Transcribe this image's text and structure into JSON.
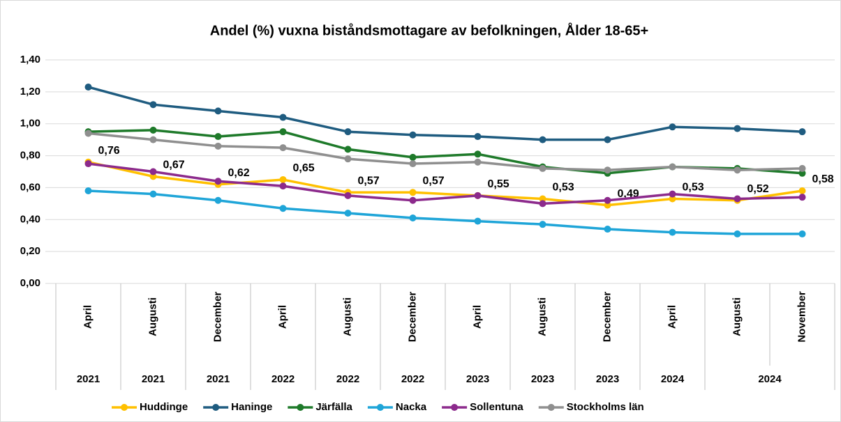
{
  "chart_data": {
    "type": "line",
    "title": "Andel (%) vuxna biståndsmottagare  av befolkningen, Ålder 18-65+",
    "categories": [
      "April",
      "Augusti",
      "December",
      "April",
      "Augusti",
      "December",
      "April",
      "Augusti",
      "December",
      "April",
      "Augusti",
      "November"
    ],
    "years": [
      "2021",
      "2021",
      "2021",
      "2022",
      "2022",
      "2022",
      "2023",
      "2023",
      "2023",
      "2024",
      "2024",
      null
    ],
    "ylim": [
      0,
      1.4
    ],
    "yticks": [
      {
        "value": 0,
        "label": "0,00"
      },
      {
        "value": 0.2,
        "label": "0,20"
      },
      {
        "value": 0.4,
        "label": "0,40"
      },
      {
        "value": 0.6,
        "label": "0,60"
      },
      {
        "value": 0.8,
        "label": "0,80"
      },
      {
        "value": 1.0,
        "label": "1,00"
      },
      {
        "value": 1.2,
        "label": "1,20"
      },
      {
        "value": 1.4,
        "label": "1,40"
      }
    ],
    "grid": true,
    "legend": "bottom",
    "series": [
      {
        "name": "Huddinge",
        "color": "#ffc000",
        "values": [
          0.76,
          0.67,
          0.62,
          0.65,
          0.57,
          0.57,
          0.55,
          0.53,
          0.49,
          0.53,
          0.52,
          0.58
        ],
        "value_labels": [
          "0,76",
          "0,67",
          "0,62",
          "0,65",
          "0,57",
          "0,57",
          "0,55",
          "0,53",
          "0,49",
          "0,53",
          "0,52",
          "0,58"
        ]
      },
      {
        "name": "Haninge",
        "color": "#1f5c80",
        "values": [
          1.23,
          1.12,
          1.08,
          1.04,
          0.95,
          0.93,
          0.92,
          0.9,
          0.9,
          0.98,
          0.97,
          0.95
        ]
      },
      {
        "name": "Järfälla",
        "color": "#1e7a2a",
        "values": [
          0.95,
          0.96,
          0.92,
          0.95,
          0.84,
          0.79,
          0.81,
          0.73,
          0.69,
          0.73,
          0.72,
          0.69
        ]
      },
      {
        "name": "Nacka",
        "color": "#1fa5d8",
        "values": [
          0.58,
          0.56,
          0.52,
          0.47,
          0.44,
          0.41,
          0.39,
          0.37,
          0.34,
          0.32,
          0.31,
          0.31
        ]
      },
      {
        "name": "Sollentuna",
        "color": "#8c2a8c",
        "values": [
          0.75,
          0.7,
          0.64,
          0.61,
          0.55,
          0.52,
          0.55,
          0.5,
          0.52,
          0.56,
          0.53,
          0.54
        ]
      },
      {
        "name": "Stockholms län",
        "color": "#8f8f8f",
        "values": [
          0.94,
          0.9,
          0.86,
          0.85,
          0.78,
          0.75,
          0.76,
          0.72,
          0.71,
          0.73,
          0.71,
          0.72
        ]
      }
    ]
  }
}
